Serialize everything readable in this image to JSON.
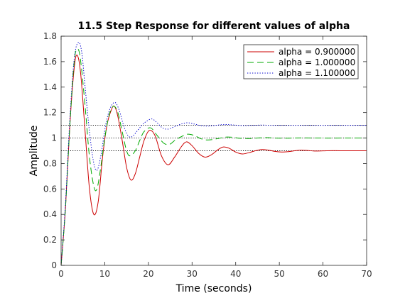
{
  "chart_data": {
    "type": "line",
    "title": "11.5 Step Response for different values of alpha",
    "xlabel": "Time (seconds)",
    "ylabel": "Amplitude",
    "xlim": [
      0,
      70
    ],
    "ylim": [
      0,
      1.8
    ],
    "xticks": [
      0,
      10,
      20,
      30,
      40,
      50,
      60,
      70
    ],
    "yticks": [
      0,
      0.2,
      0.4,
      0.6,
      0.8,
      1,
      1.2,
      1.4,
      1.6,
      1.8
    ],
    "grid": false,
    "legend_position": "top-right",
    "series": [
      {
        "name": "alpha = 0.900000",
        "color": "#cc0000",
        "dash": "solid",
        "final_value": 0.9,
        "points": [
          [
            0,
            0
          ],
          [
            1,
            0.45
          ],
          [
            2,
            1.1
          ],
          [
            3,
            1.55
          ],
          [
            3.7,
            1.65
          ],
          [
            4.5,
            1.5
          ],
          [
            5.5,
            1.05
          ],
          [
            6.5,
            0.6
          ],
          [
            7.5,
            0.4
          ],
          [
            8.5,
            0.5
          ],
          [
            9.5,
            0.85
          ],
          [
            10.5,
            1.1
          ],
          [
            11.5,
            1.22
          ],
          [
            12.2,
            1.25
          ],
          [
            13,
            1.17
          ],
          [
            14,
            0.98
          ],
          [
            15,
            0.77
          ],
          [
            16,
            0.67
          ],
          [
            17,
            0.72
          ],
          [
            18,
            0.85
          ],
          [
            19,
            0.98
          ],
          [
            20.2,
            1.06
          ],
          [
            21.5,
            1.02
          ],
          [
            23,
            0.86
          ],
          [
            24.5,
            0.79
          ],
          [
            26,
            0.85
          ],
          [
            27.5,
            0.93
          ],
          [
            28.7,
            0.97
          ],
          [
            30,
            0.94
          ],
          [
            31.5,
            0.88
          ],
          [
            33,
            0.85
          ],
          [
            34.5,
            0.87
          ],
          [
            36,
            0.91
          ],
          [
            37.2,
            0.93
          ],
          [
            38.5,
            0.92
          ],
          [
            40,
            0.89
          ],
          [
            41.5,
            0.875
          ],
          [
            43,
            0.885
          ],
          [
            44.5,
            0.9
          ],
          [
            46,
            0.91
          ],
          [
            47.5,
            0.905
          ],
          [
            49,
            0.895
          ],
          [
            50.5,
            0.89
          ],
          [
            52,
            0.893
          ],
          [
            53.5,
            0.9
          ],
          [
            55,
            0.905
          ],
          [
            56.5,
            0.902
          ],
          [
            58,
            0.898
          ],
          [
            60,
            0.899
          ],
          [
            62,
            0.901
          ],
          [
            64,
            0.9
          ],
          [
            66,
            0.9
          ],
          [
            68,
            0.9
          ],
          [
            70,
            0.9
          ]
        ]
      },
      {
        "name": "alpha = 1.000000",
        "color": "#00aa00",
        "dash": "dashed",
        "final_value": 1.0,
        "points": [
          [
            0,
            0
          ],
          [
            1,
            0.45
          ],
          [
            2,
            1.1
          ],
          [
            3,
            1.6
          ],
          [
            3.8,
            1.7
          ],
          [
            4.5,
            1.6
          ],
          [
            5.5,
            1.25
          ],
          [
            6.5,
            0.85
          ],
          [
            7.5,
            0.62
          ],
          [
            8.2,
            0.6
          ],
          [
            9,
            0.75
          ],
          [
            10,
            1.0
          ],
          [
            11,
            1.18
          ],
          [
            12,
            1.25
          ],
          [
            13,
            1.2
          ],
          [
            14,
            1.05
          ],
          [
            15,
            0.9
          ],
          [
            15.8,
            0.86
          ],
          [
            17,
            0.9
          ],
          [
            18,
            0.98
          ],
          [
            19,
            1.05
          ],
          [
            20.5,
            1.08
          ],
          [
            22,
            1.02
          ],
          [
            23.5,
            0.96
          ],
          [
            24.8,
            0.95
          ],
          [
            26,
            0.98
          ],
          [
            27.5,
            1.01
          ],
          [
            29,
            1.03
          ],
          [
            30.5,
            1.02
          ],
          [
            32,
            0.995
          ],
          [
            33.5,
            0.985
          ],
          [
            35,
            0.99
          ],
          [
            36.5,
            1.0
          ],
          [
            38,
            1.008
          ],
          [
            39.5,
            1.005
          ],
          [
            41,
            0.998
          ],
          [
            43,
            0.996
          ],
          [
            45,
            1.0
          ],
          [
            47,
            1.003
          ],
          [
            49,
            1.0
          ],
          [
            52,
            0.999
          ],
          [
            55,
            1.001
          ],
          [
            60,
            1.0
          ],
          [
            65,
            1.0
          ],
          [
            70,
            1.0
          ]
        ]
      },
      {
        "name": "alpha = 1.100000",
        "color": "#0000cc",
        "dash": "dotted",
        "final_value": 1.1,
        "points": [
          [
            0,
            0
          ],
          [
            1,
            0.48
          ],
          [
            2,
            1.15
          ],
          [
            3,
            1.62
          ],
          [
            3.9,
            1.75
          ],
          [
            4.7,
            1.68
          ],
          [
            5.5,
            1.4
          ],
          [
            6.5,
            1.05
          ],
          [
            7.5,
            0.8
          ],
          [
            8.3,
            0.75
          ],
          [
            9.2,
            0.88
          ],
          [
            10.2,
            1.1
          ],
          [
            11.2,
            1.23
          ],
          [
            12.3,
            1.28
          ],
          [
            13.3,
            1.22
          ],
          [
            14.3,
            1.1
          ],
          [
            15.3,
            1.02
          ],
          [
            16.2,
            1.01
          ],
          [
            17.3,
            1.05
          ],
          [
            18.5,
            1.1
          ],
          [
            19.5,
            1.13
          ],
          [
            20.8,
            1.15
          ],
          [
            22,
            1.12
          ],
          [
            23.2,
            1.08
          ],
          [
            24.5,
            1.07
          ],
          [
            26,
            1.09
          ],
          [
            27.5,
            1.11
          ],
          [
            29,
            1.12
          ],
          [
            30.5,
            1.11
          ],
          [
            32,
            1.098
          ],
          [
            33.5,
            1.094
          ],
          [
            35,
            1.098
          ],
          [
            36.5,
            1.104
          ],
          [
            38,
            1.106
          ],
          [
            40,
            1.101
          ],
          [
            42,
            1.098
          ],
          [
            44,
            1.1
          ],
          [
            46,
            1.102
          ],
          [
            48,
            1.1
          ],
          [
            52,
            1.1
          ],
          [
            56,
            1.1
          ],
          [
            60,
            1.1
          ],
          [
            65,
            1.1
          ],
          [
            70,
            1.1
          ]
        ]
      }
    ]
  }
}
